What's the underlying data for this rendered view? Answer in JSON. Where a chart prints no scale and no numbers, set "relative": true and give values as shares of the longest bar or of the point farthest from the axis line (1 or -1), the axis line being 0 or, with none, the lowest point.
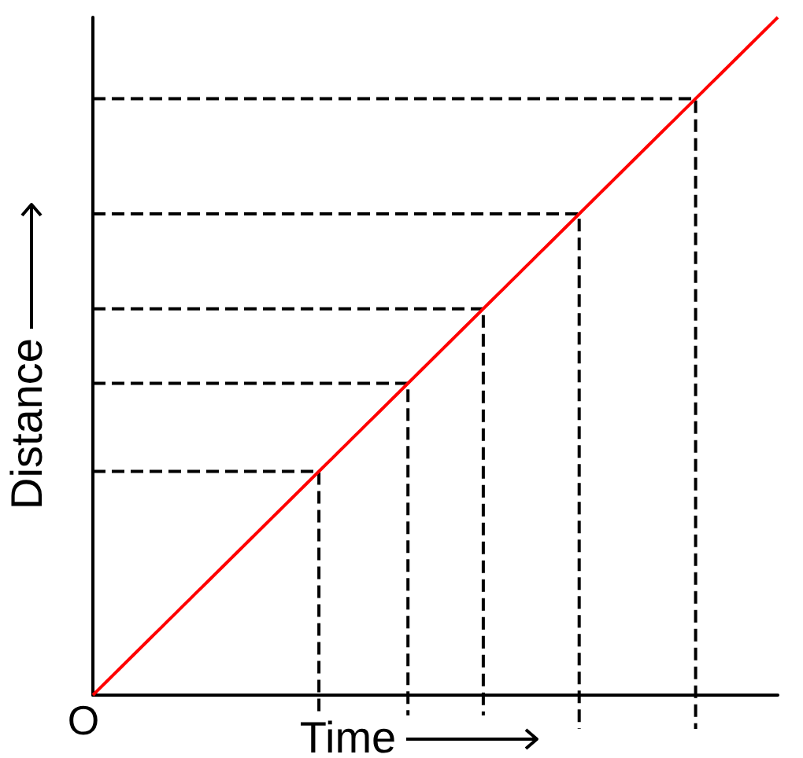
{
  "chart_data": {
    "type": "line",
    "xlabel": "Time",
    "ylabel": "Distance",
    "relative": true,
    "marker": "none",
    "line_style": "solid",
    "annotations": [
      "O"
    ],
    "categories": [
      null,
      null,
      null,
      null,
      null,
      null,
      null,
      null,
      null,
      null,
      null,
      null,
      null,
      null,
      null,
      null,
      null,
      null,
      null,
      null,
      null,
      null,
      null,
      null,
      null,
      null,
      null,
      null,
      null,
      null,
      null,
      null,
      null,
      null,
      null,
      null,
      null,
      null,
      null,
      null,
      null,
      null,
      null,
      null,
      null,
      null,
      null,
      null,
      null,
      null,
      null,
      null,
      null,
      null,
      null,
      null,
      null,
      null,
      null,
      null,
      null,
      null,
      null,
      null,
      null,
      null,
      null,
      null,
      null,
      null,
      null,
      null,
      null,
      null,
      null,
      null,
      null,
      null,
      null,
      null,
      null,
      null,
      null,
      null,
      null,
      null,
      null,
      null,
      null,
      null,
      null,
      null,
      null,
      null,
      null,
      null,
      null,
      null,
      null,
      null,
      null
    ],
    "series": [
      {
        "type": "step",
        "color": "#000000",
        "line_style": "dashed",
        "values": [
          0.88,
          0.88,
          0.88,
          0.88,
          0.88,
          0.88,
          0.88,
          0.88,
          0.88,
          0.88,
          0.88,
          0.88,
          0.88,
          0.88,
          0.88,
          0.88,
          0.88,
          0.88,
          0.88,
          0.88,
          0.88,
          0.88,
          0.88,
          0.88,
          0.88,
          0.88,
          0.88,
          0.88,
          0.88,
          0.88,
          0.88,
          0.88,
          0.88,
          0.88,
          0.88,
          0.88,
          0.88,
          0.88,
          0.88,
          0.88,
          0.88,
          0.88,
          0.88,
          0.88,
          0.88,
          0.88,
          0.88,
          0.88,
          0.88,
          0.88,
          0.88,
          0.88,
          0.88,
          0.88,
          0.88,
          0.88,
          0.88,
          0.88,
          0.88,
          0.88,
          0.88,
          0.88,
          0.88,
          0.88,
          0.88,
          0.88,
          0.88,
          0.88,
          0.88,
          0.88,
          0.88,
          0.88,
          0.88,
          0.88,
          0.88,
          0.88,
          0.88,
          0.88,
          0.88,
          0.88,
          0.88,
          0.88,
          0.88,
          0.88,
          0.88,
          0.88,
          0.88,
          0.88,
          -0.05,
          null,
          null,
          null,
          null,
          null,
          null,
          null,
          null,
          null,
          null,
          null,
          null
        ]
      },
      {
        "type": "step",
        "color": "#000000",
        "line_style": "dashed",
        "values": [
          0.71,
          0.71,
          0.71,
          0.71,
          0.71,
          0.71,
          0.71,
          0.71,
          0.71,
          0.71,
          0.71,
          0.71,
          0.71,
          0.71,
          0.71,
          0.71,
          0.71,
          0.71,
          0.71,
          0.71,
          0.71,
          0.71,
          0.71,
          0.71,
          0.71,
          0.71,
          0.71,
          0.71,
          0.71,
          0.71,
          0.71,
          0.71,
          0.71,
          0.71,
          0.71,
          0.71,
          0.71,
          0.71,
          0.71,
          0.71,
          0.71,
          0.71,
          0.71,
          0.71,
          0.71,
          0.71,
          0.71,
          0.71,
          0.71,
          0.71,
          0.71,
          0.71,
          0.71,
          0.71,
          0.71,
          0.71,
          0.71,
          0.71,
          0.71,
          0.71,
          0.71,
          0.71,
          0.71,
          0.71,
          0.71,
          0.71,
          0.71,
          0.71,
          0.71,
          0.71,
          0.71,
          -0.05,
          null,
          null,
          null,
          null,
          null,
          null,
          null,
          null,
          null,
          null,
          null,
          null,
          null,
          null,
          null,
          null,
          null,
          null,
          null,
          null,
          null,
          null,
          null,
          null,
          null,
          null,
          null,
          null,
          null
        ]
      },
      {
        "type": "step",
        "color": "#000000",
        "line_style": "dashed",
        "values": [
          0.57,
          0.57,
          0.57,
          0.57,
          0.57,
          0.57,
          0.57,
          0.57,
          0.57,
          0.57,
          0.57,
          0.57,
          0.57,
          0.57,
          0.57,
          0.57,
          0.57,
          0.57,
          0.57,
          0.57,
          0.57,
          0.57,
          0.57,
          0.57,
          0.57,
          0.57,
          0.57,
          0.57,
          0.57,
          0.57,
          0.57,
          0.57,
          0.57,
          0.57,
          0.57,
          0.57,
          0.57,
          0.57,
          0.57,
          0.57,
          0.57,
          0.57,
          0.57,
          0.57,
          0.57,
          0.57,
          0.57,
          0.57,
          0.57,
          0.57,
          0.57,
          0.57,
          0.57,
          0.57,
          0.57,
          0.57,
          0.57,
          -0.03,
          null,
          null,
          null,
          null,
          null,
          null,
          null,
          null,
          null,
          null,
          null,
          null,
          null,
          null,
          null,
          null,
          null,
          null,
          null,
          null,
          null,
          null,
          null,
          null,
          null,
          null,
          null,
          null,
          null,
          null,
          null,
          null,
          null,
          null,
          null,
          null,
          null,
          null,
          null,
          null,
          null,
          null,
          null
        ]
      },
      {
        "type": "step",
        "color": "#000000",
        "line_style": "dashed",
        "values": [
          0.46,
          0.46,
          0.46,
          0.46,
          0.46,
          0.46,
          0.46,
          0.46,
          0.46,
          0.46,
          0.46,
          0.46,
          0.46,
          0.46,
          0.46,
          0.46,
          0.46,
          0.46,
          0.46,
          0.46,
          0.46,
          0.46,
          0.46,
          0.46,
          0.46,
          0.46,
          0.46,
          0.46,
          0.46,
          0.46,
          0.46,
          0.46,
          0.46,
          0.46,
          0.46,
          0.46,
          0.46,
          0.46,
          0.46,
          0.46,
          0.46,
          0.46,
          0.46,
          0.46,
          0.46,
          0.46,
          -0.03,
          null,
          null,
          null,
          null,
          null,
          null,
          null,
          null,
          null,
          null,
          null,
          null,
          null,
          null,
          null,
          null,
          null,
          null,
          null,
          null,
          null,
          null,
          null,
          null,
          null,
          null,
          null,
          null,
          null,
          null,
          null,
          null,
          null,
          null,
          null,
          null,
          null,
          null,
          null,
          null,
          null,
          null,
          null,
          null,
          null,
          null,
          null,
          null,
          null,
          null,
          null,
          null,
          null,
          null
        ]
      },
      {
        "type": "step",
        "color": "#000000",
        "line_style": "dashed",
        "values": [
          0.33,
          0.33,
          0.33,
          0.33,
          0.33,
          0.33,
          0.33,
          0.33,
          0.33,
          0.33,
          0.33,
          0.33,
          0.33,
          0.33,
          0.33,
          0.33,
          0.33,
          0.33,
          0.33,
          0.33,
          0.33,
          0.33,
          0.33,
          0.33,
          0.33,
          0.33,
          0.33,
          0.33,
          0.33,
          0.33,
          0.33,
          0.33,
          0.33,
          -0.03,
          null,
          null,
          null,
          null,
          null,
          null,
          null,
          null,
          null,
          null,
          null,
          null,
          null,
          null,
          null,
          null,
          null,
          null,
          null,
          null,
          null,
          null,
          null,
          null,
          null,
          null,
          null,
          null,
          null,
          null,
          null,
          null,
          null,
          null,
          null,
          null,
          null,
          null,
          null,
          null,
          null,
          null,
          null,
          null,
          null,
          null,
          null,
          null,
          null,
          null,
          null,
          null,
          null,
          null,
          null,
          null,
          null,
          null,
          null,
          null,
          null,
          null,
          null,
          null,
          null,
          null,
          null
        ]
      },
      {
        "color": "#ff0000",
        "values": [
          0,
          0.01,
          0.02,
          0.03,
          0.04,
          0.05,
          0.06,
          0.07,
          0.08,
          0.09,
          0.1,
          0.11,
          0.12,
          0.13,
          0.14,
          0.15,
          0.16,
          0.17,
          0.18,
          0.19,
          0.2,
          0.21,
          0.22,
          0.23,
          0.24,
          0.25,
          0.26,
          0.27,
          0.28,
          0.29,
          0.3,
          0.31,
          0.32,
          0.33,
          0.34,
          0.35,
          0.36,
          0.37,
          0.38,
          0.39,
          0.4,
          0.41,
          0.42,
          0.43,
          0.44,
          0.45,
          0.46,
          0.47,
          0.48,
          0.49,
          0.5,
          0.51,
          0.52,
          0.53,
          0.54,
          0.55,
          0.56,
          0.57,
          0.58,
          0.59,
          0.6,
          0.61,
          0.62,
          0.63,
          0.64,
          0.65,
          0.66,
          0.67,
          0.68,
          0.69,
          0.7,
          0.71,
          0.72,
          0.73,
          0.74,
          0.75,
          0.76,
          0.77,
          0.78,
          0.79,
          0.8,
          0.81,
          0.82,
          0.83,
          0.84,
          0.85,
          0.86,
          0.87,
          0.88,
          0.89,
          0.9,
          0.91,
          0.92,
          0.93,
          0.94,
          0.95,
          0.96,
          0.97,
          0.98,
          0.99,
          1
        ]
      }
    ]
  }
}
